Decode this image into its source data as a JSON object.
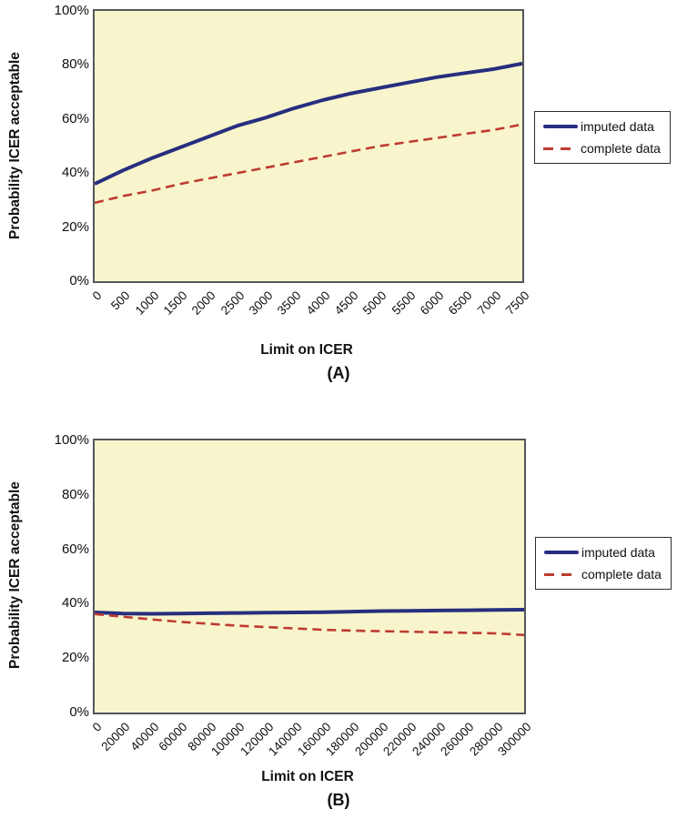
{
  "figure": {
    "panels": [
      {
        "label": "(A)"
      },
      {
        "label": "(B)"
      }
    ]
  },
  "colors": {
    "imputed_line": "#272E7F",
    "complete_line": "#BE3A2E",
    "plot_background": "#F8F5CD",
    "plot_border": "#55565A"
  },
  "chart_data": [
    {
      "id": "A",
      "type": "line",
      "title": "",
      "xlabel": "Limit on ICER",
      "ylabel": "Probability ICER acceptable",
      "xlim": [
        0,
        7500
      ],
      "ylim": [
        0,
        100
      ],
      "grid": false,
      "legend_position": "right-outside",
      "x_tick_labels": [
        "0",
        "500",
        "1000",
        "1500",
        "2000",
        "2500",
        "3000",
        "3500",
        "4000",
        "4500",
        "5000",
        "5500",
        "6000",
        "6500",
        "7000",
        "7500"
      ],
      "y_tick_labels": [
        "100%",
        "80%",
        "60%",
        "40%",
        "20%",
        "0%"
      ],
      "x": [
        0,
        500,
        1000,
        1500,
        2000,
        2500,
        3000,
        3500,
        4000,
        4500,
        5000,
        5500,
        6000,
        6500,
        7000,
        7500
      ],
      "series": [
        {
          "name": "imputed data",
          "style": "solid",
          "color": "#272E7F",
          "values": [
            36,
            41,
            45.5,
            49.5,
            53.5,
            57.5,
            60.5,
            64,
            67,
            69.5,
            71.5,
            73.5,
            75.5,
            77,
            78.5,
            80.5
          ]
        },
        {
          "name": "complete data",
          "style": "dashed",
          "color": "#BE3A2E",
          "values": [
            29,
            31.5,
            33.5,
            36,
            38,
            40,
            42,
            44,
            46,
            48,
            50,
            51.5,
            53,
            54.5,
            56,
            58
          ]
        }
      ]
    },
    {
      "id": "B",
      "type": "line",
      "title": "",
      "xlabel": "Limit on ICER",
      "ylabel": "Probability ICER acceptable",
      "xlim": [
        0,
        300000
      ],
      "ylim": [
        0,
        100
      ],
      "grid": false,
      "legend_position": "right-outside",
      "x_tick_labels": [
        "0",
        "20000",
        "40000",
        "60000",
        "80000",
        "100000",
        "120000",
        "140000",
        "160000",
        "180000",
        "200000",
        "220000",
        "240000",
        "260000",
        "280000",
        "300000"
      ],
      "y_tick_labels": [
        "100%",
        "80%",
        "60%",
        "40%",
        "20%",
        "0%"
      ],
      "x": [
        0,
        20000,
        40000,
        60000,
        80000,
        100000,
        120000,
        140000,
        160000,
        180000,
        200000,
        220000,
        240000,
        260000,
        280000,
        300000
      ],
      "series": [
        {
          "name": "imputed data",
          "style": "solid",
          "color": "#272E7F",
          "values": [
            36.8,
            36.4,
            36.3,
            36.4,
            36.5,
            36.6,
            36.7,
            36.8,
            36.9,
            37.1,
            37.3,
            37.4,
            37.5,
            37.6,
            37.7,
            37.8
          ]
        },
        {
          "name": "complete data",
          "style": "dashed",
          "color": "#BE3A2E",
          "values": [
            36.2,
            35.2,
            34.2,
            33.3,
            32.6,
            31.9,
            31.4,
            30.9,
            30.4,
            30.1,
            29.9,
            29.7,
            29.5,
            29.3,
            29.1,
            28.5
          ]
        }
      ]
    }
  ]
}
